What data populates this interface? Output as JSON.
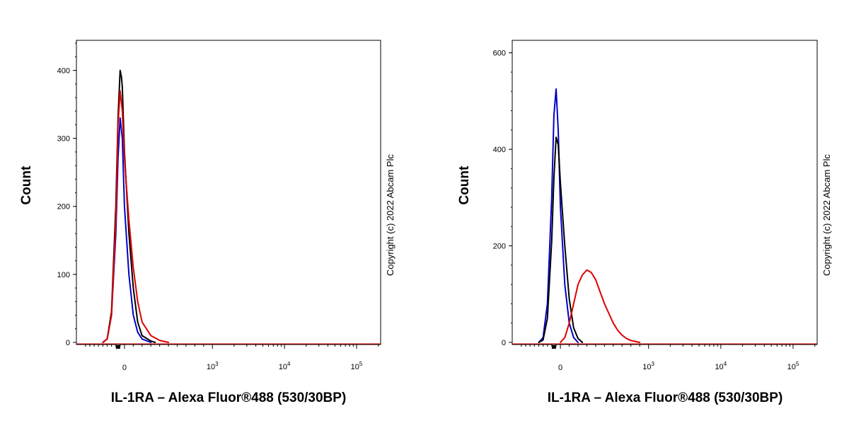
{
  "chart_data": [
    {
      "type": "line",
      "panel": "left",
      "ylabel": "Count",
      "xlabel": "IL-1RA – Alexa Fluor®488 (530/30BP)",
      "copyright": "Copyright (c) 2022 Abcam Plc",
      "ylim": [
        0,
        440
      ],
      "yticks": [
        {
          "value": 0,
          "label": "0"
        },
        {
          "value": 100,
          "label": "100"
        },
        {
          "value": 200,
          "label": "200"
        },
        {
          "value": 300,
          "label": "300"
        },
        {
          "value": 400,
          "label": "400"
        }
      ],
      "xticks": [
        {
          "value": 0,
          "base": "0",
          "exp": ""
        },
        {
          "value": 1000,
          "base": "10",
          "exp": "3"
        },
        {
          "value": 10000,
          "base": "10",
          "exp": "4"
        },
        {
          "value": 100000,
          "base": "10",
          "exp": "5"
        }
      ],
      "xscale": "biexponential",
      "xlim": [
        -1000,
        250000
      ],
      "series": [
        {
          "color": "#0000cc",
          "x": [
            -500,
            -400,
            -300,
            -200,
            -150,
            -100,
            -50,
            0,
            50,
            100,
            150,
            200,
            300
          ],
          "y": [
            0,
            5,
            40,
            160,
            270,
            330,
            300,
            200,
            100,
            40,
            15,
            5,
            0
          ]
        },
        {
          "color": "#000000",
          "x": [
            -500,
            -400,
            -300,
            -200,
            -150,
            -100,
            -70,
            -50,
            0,
            50,
            100,
            150,
            200,
            300,
            350
          ],
          "y": [
            0,
            5,
            45,
            200,
            330,
            400,
            390,
            375,
            280,
            160,
            80,
            30,
            10,
            2,
            0
          ]
        },
        {
          "color": "#dd0000",
          "x": [
            -500,
            -400,
            -300,
            -200,
            -150,
            -100,
            -50,
            0,
            50,
            100,
            150,
            200,
            300,
            400,
            500
          ],
          "y": [
            0,
            5,
            40,
            180,
            320,
            370,
            340,
            270,
            180,
            110,
            60,
            30,
            10,
            3,
            0
          ]
        }
      ]
    },
    {
      "type": "line",
      "panel": "right",
      "ylabel": "Count",
      "xlabel": "IL-1RA – Alexa Fluor®488 (530/30BP)",
      "copyright": "Copyright (c) 2022 Abcam Plc",
      "ylim": [
        0,
        620
      ],
      "yticks": [
        {
          "value": 0,
          "label": "0"
        },
        {
          "value": 200,
          "label": "200"
        },
        {
          "value": 400,
          "label": "400"
        },
        {
          "value": 600,
          "label": "600"
        }
      ],
      "xticks": [
        {
          "value": 0,
          "base": "0",
          "exp": ""
        },
        {
          "value": 1000,
          "base": "10",
          "exp": "3"
        },
        {
          "value": 10000,
          "base": "10",
          "exp": "4"
        },
        {
          "value": 100000,
          "base": "10",
          "exp": "5"
        }
      ],
      "xscale": "biexponential",
      "xlim": [
        -1000,
        250000
      ],
      "series": [
        {
          "color": "#0000cc",
          "x": [
            -500,
            -400,
            -300,
            -200,
            -150,
            -100,
            -50,
            0,
            50,
            100,
            150,
            200
          ],
          "y": [
            0,
            10,
            80,
            300,
            470,
            525,
            440,
            280,
            120,
            40,
            10,
            0
          ]
        },
        {
          "color": "#000000",
          "x": [
            -500,
            -400,
            -300,
            -200,
            -150,
            -100,
            -50,
            0,
            50,
            100,
            150,
            200,
            250
          ],
          "y": [
            0,
            5,
            50,
            210,
            340,
            425,
            410,
            330,
            200,
            90,
            30,
            8,
            0
          ]
        },
        {
          "color": "#dd0000",
          "x": [
            0,
            50,
            100,
            150,
            200,
            250,
            300,
            350,
            400,
            450,
            500,
            550,
            600,
            650,
            700,
            750,
            800,
            850,
            900
          ],
          "y": [
            0,
            10,
            40,
            80,
            120,
            140,
            150,
            145,
            130,
            105,
            80,
            60,
            40,
            25,
            15,
            8,
            4,
            2,
            0
          ]
        }
      ]
    }
  ]
}
